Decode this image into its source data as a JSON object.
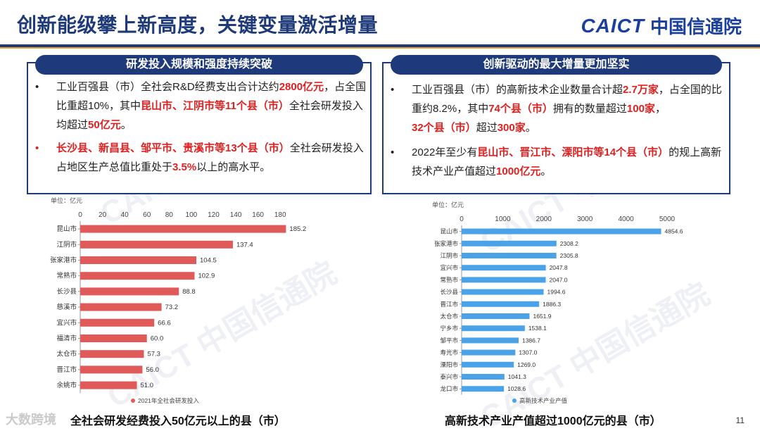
{
  "header": {
    "title": "创新能级攀上新高度，关键变量激活增量",
    "logo_en": "CAICT",
    "logo_cn": "中国信通院"
  },
  "left_box": {
    "heading": "研发投入规模和强度持续突破",
    "b1": {
      "p1": "工业百强县（市）全社会R&D经费支出合计达约",
      "h1": "2800亿元",
      "p2": "，占全国比重超10%，其中",
      "h2": "昆山市、江阴市等11个县（市）",
      "p3": "全社会研发投入均超过",
      "h3": "50亿元",
      "p4": "。"
    },
    "b2": {
      "h1": "长沙县、新昌县、邹平市、贵溪市等13个县（市）",
      "p1": "全社会研发投入占地区生产总值比重处于",
      "h2": "3.5%",
      "p2": "以上的高水平。"
    }
  },
  "right_box": {
    "heading": "创新驱动的最大增量更加坚实",
    "b1": {
      "p1": "工业百强县（市）的高新技术企业数量合计超",
      "h1": "2.7万家",
      "p2": "，占全国的比重约8.2%，其中",
      "h2": "74个县（市）",
      "p3": "拥有的数量超过",
      "h3": "100家",
      "p4": "，",
      "h4": "32个县（市）",
      "p5": "超过",
      "h5": "300家",
      "p6": "。"
    },
    "b2": {
      "p1": "2022年至少有",
      "h1": "昆山市、晋江市、溧阳市等14个县（市）",
      "p2": "的规上高新技术产业产值超过",
      "h2": "1000亿元",
      "p3": "。"
    }
  },
  "bullet_symbol": "•",
  "captions": {
    "left": "全社会研发经费投入50亿元以上的县（市）",
    "right": "高新技术产业产值超过1000亿元的县（市）"
  },
  "page_number": "11",
  "watermark_corner": "大数跨境",
  "colors": {
    "accent": "#1f3a7a",
    "left_bar": "#e05a5a",
    "right_bar": "#4aa3e8",
    "highlight": "#e02020"
  },
  "chart_data": [
    {
      "type": "bar",
      "orientation": "horizontal",
      "unit_label": "单位：亿元",
      "categories": [
        "昆山市",
        "江阴市",
        "张家港市",
        "常熟市",
        "长沙县",
        "慈溪市",
        "宜兴市",
        "福清市",
        "太仓市",
        "晋江市",
        "余姚市"
      ],
      "series": [
        {
          "name": "2021年全社会研发投入",
          "values": [
            185.2,
            137.4,
            104.5,
            102.9,
            88.8,
            73.2,
            66.6,
            60.0,
            57.3,
            56.0,
            51.0
          ]
        }
      ],
      "xlim": [
        0,
        190
      ],
      "ticks": [
        0,
        20,
        40,
        60,
        80,
        100,
        120,
        140,
        160,
        180
      ],
      "tick_labels": [
        "0",
        "20",
        "40",
        "60",
        "80",
        "100",
        "120",
        "140",
        "160",
        "180"
      ],
      "value_labels": [
        "185.2",
        "137.4",
        "104.5",
        "102.9",
        "88.8",
        "73.2",
        "66.6",
        "60.0",
        "57.3",
        "56.0",
        "51.0"
      ],
      "legend": "bottom"
    },
    {
      "type": "bar",
      "orientation": "horizontal",
      "unit_label": "单位：亿元",
      "categories": [
        "昆山市",
        "张家港市",
        "江阴市",
        "宜兴市",
        "常熟市",
        "长沙县",
        "晋江市",
        "太仓市",
        "宁乡市",
        "邹平市",
        "寿光市",
        "溧阳市",
        "泰兴市",
        "龙口市"
      ],
      "series": [
        {
          "name": "高新技术产业产值",
          "values": [
            4854.6,
            2308.2,
            2305.8,
            2047.8,
            2047.0,
            1994.6,
            1886.3,
            1651.9,
            1538.1,
            1386.7,
            1307.0,
            1269.0,
            1041.3,
            1028.6
          ]
        }
      ],
      "xlim": [
        0,
        5000
      ],
      "ticks": [
        0,
        1000,
        2000,
        3000,
        4000,
        5000
      ],
      "tick_labels": [
        "0",
        "1000",
        "2000",
        "3000",
        "4000",
        "5000"
      ],
      "value_labels": [
        "4854.6",
        "2308.2",
        "2305.8",
        "2047.8",
        "2047.0",
        "1994.6",
        "1886.3",
        "1651.9",
        "1538.1",
        "1386.7",
        "1307.0",
        "1269.0",
        "1041.3",
        "1028.6"
      ],
      "legend": "bottom"
    }
  ]
}
